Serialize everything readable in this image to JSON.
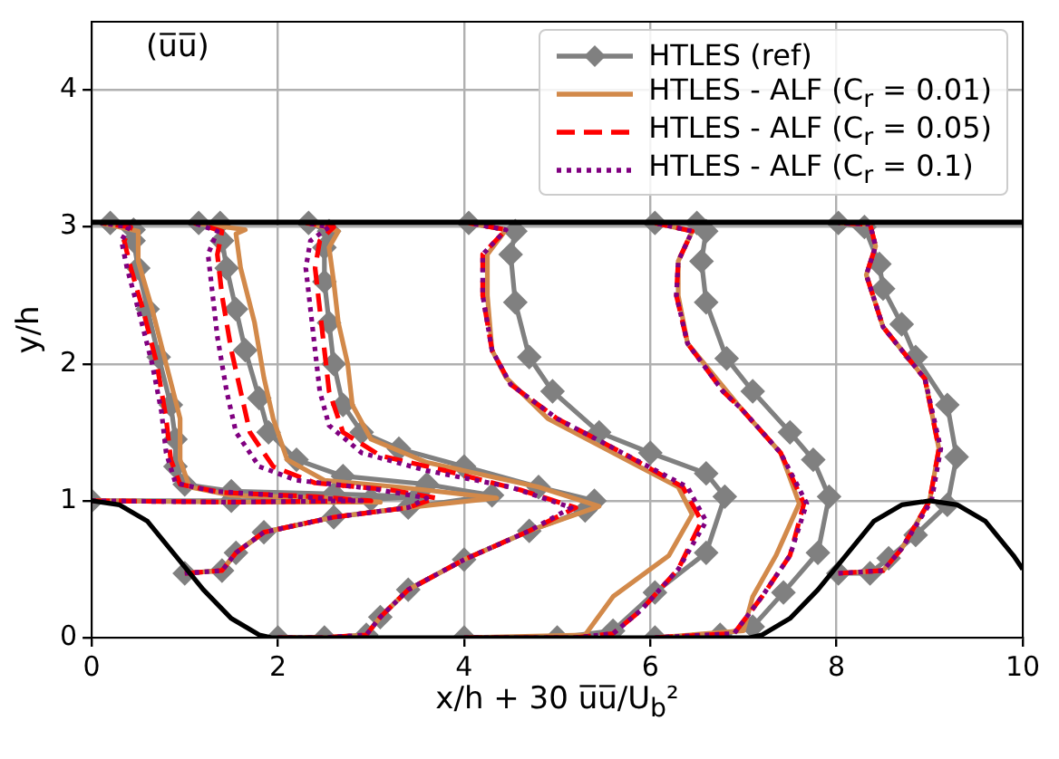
{
  "chart_data": {
    "type": "line",
    "xlabel": "x/h + 30 u̅u̅/U$_{b}$²",
    "ylabel": "y/h",
    "annotations": [
      "(u̅u̅)"
    ],
    "xlim": [
      0,
      10
    ],
    "xticks": [
      0,
      2,
      4,
      6,
      8,
      10
    ],
    "ylim": [
      0,
      4.5
    ],
    "yticks": [
      0,
      1,
      2,
      3,
      4
    ],
    "grid": true,
    "legend": "top right",
    "ref_lines": [
      {
        "axis": "y",
        "value": 3.035,
        "color": "#000000"
      }
    ],
    "series": [
      {
        "name": "HTLES (ref)",
        "color": "#808080",
        "marker": "diamond",
        "line_style": "solid",
        "x": [
          0,
          1.5,
          3.0,
          3.5,
          2.6,
          1.5,
          1.0,
          0.9,
          0.9,
          0.85,
          0.72,
          0.6,
          0.5,
          0.45,
          0.45,
          0.2,
          null,
          1.0,
          1.4,
          1.55,
          1.85,
          2.6,
          3.4,
          4.3,
          3.6,
          2.7,
          2.2,
          1.9,
          1.8,
          1.65,
          1.55,
          1.45,
          1.4,
          1.38,
          1.15,
          null,
          2.0,
          2.5,
          2.95,
          3.1,
          3.4,
          4.0,
          4.7,
          5.3,
          5.4,
          4.8,
          4.0,
          3.3,
          2.9,
          2.7,
          2.6,
          2.55,
          2.5,
          2.5,
          2.55,
          2.33,
          null,
          4.0,
          5.0,
          5.6,
          6.05,
          6.6,
          6.8,
          6.6,
          6.0,
          5.45,
          4.95,
          4.7,
          4.55,
          4.5,
          4.55,
          4.05,
          null,
          6.05,
          6.75,
          7.1,
          7.43,
          7.8,
          7.92,
          7.75,
          7.5,
          7.1,
          6.82,
          6.6,
          6.55,
          6.6,
          6.5,
          6.05,
          null,
          8.02,
          8.36,
          8.56,
          8.85,
          9.19,
          9.29,
          9.19,
          8.85,
          8.7,
          8.5,
          8.46,
          8.3,
          8.02
        ],
        "values": [
          1.0,
          1.0,
          1.01,
          1.03,
          1.05,
          1.07,
          1.12,
          1.25,
          1.45,
          1.7,
          2.05,
          2.4,
          2.7,
          2.9,
          2.98,
          3.03,
          null,
          0.47,
          0.49,
          0.62,
          0.77,
          0.88,
          0.95,
          1.04,
          1.12,
          1.18,
          1.3,
          1.5,
          1.75,
          2.1,
          2.4,
          2.7,
          2.9,
          3.03,
          3.03,
          null,
          0.0,
          0.0,
          0.02,
          0.15,
          0.35,
          0.57,
          0.78,
          0.93,
          1.0,
          1.1,
          1.25,
          1.38,
          1.5,
          1.7,
          2.0,
          2.3,
          2.6,
          2.85,
          2.97,
          3.03,
          null,
          0.0,
          0.0,
          0.05,
          0.33,
          0.62,
          1.03,
          1.2,
          1.35,
          1.5,
          1.8,
          2.05,
          2.45,
          2.8,
          2.97,
          3.03,
          null,
          0.0,
          0.02,
          0.08,
          0.33,
          0.62,
          1.03,
          1.3,
          1.5,
          1.8,
          2.04,
          2.45,
          2.75,
          2.97,
          3.03,
          3.03,
          null,
          0.47,
          0.47,
          0.58,
          0.75,
          0.97,
          1.32,
          1.7,
          2.05,
          2.29,
          2.55,
          2.73,
          3.0,
          3.03
        ]
      },
      {
        "name": "HTLES - ALF (C$_{r}$ = 0.01)",
        "color": "#d2894a",
        "marker": "none",
        "line_style": "solid",
        "x": [
          0,
          1.5,
          3.1,
          2.5,
          1.5,
          1.05,
          0.95,
          0.95,
          0.8,
          0.65,
          0.5,
          0.5,
          0.1,
          null,
          1.0,
          1.4,
          1.55,
          1.85,
          2.6,
          3.4,
          4.35,
          3.3,
          2.5,
          2.1,
          1.95,
          1.85,
          1.75,
          1.6,
          1.55,
          1.65,
          1.1,
          null,
          2.0,
          2.5,
          2.95,
          3.1,
          3.4,
          4.0,
          4.7,
          5.45,
          4.8,
          3.6,
          3.0,
          2.8,
          2.75,
          2.65,
          2.6,
          2.55,
          2.65,
          2.33,
          null,
          4.0,
          5.3,
          5.6,
          6.2,
          6.45,
          6.3,
          5.6,
          4.9,
          4.45,
          4.3,
          4.25,
          4.25,
          4.45,
          4.05,
          null,
          6.05,
          7.0,
          7.1,
          7.35,
          7.6,
          7.4,
          6.98,
          6.4,
          6.3,
          6.3,
          6.45,
          6.05,
          null,
          8.02,
          8.5,
          8.7,
          9.0,
          9.1,
          8.95,
          8.5,
          8.32,
          8.42,
          8.36,
          8.02
        ],
        "values": [
          1.0,
          0.99,
          0.99,
          1.02,
          1.04,
          1.1,
          1.3,
          1.6,
          2.0,
          2.4,
          2.75,
          2.97,
          3.03,
          null,
          0.47,
          0.49,
          0.62,
          0.77,
          0.88,
          0.95,
          1.02,
          1.1,
          1.15,
          1.3,
          1.6,
          1.9,
          2.3,
          2.7,
          2.95,
          2.98,
          3.03,
          null,
          0.0,
          0.0,
          0.02,
          0.15,
          0.35,
          0.57,
          0.78,
          0.96,
          1.1,
          1.28,
          1.45,
          1.7,
          2.0,
          2.3,
          2.6,
          2.85,
          2.97,
          3.03,
          null,
          0.0,
          0.02,
          0.3,
          0.6,
          0.9,
          1.1,
          1.35,
          1.6,
          1.9,
          2.1,
          2.5,
          2.8,
          2.98,
          3.03,
          null,
          0.0,
          0.05,
          0.3,
          0.6,
          0.98,
          1.35,
          1.67,
          2.15,
          2.5,
          2.75,
          2.97,
          3.03,
          null,
          0.47,
          0.49,
          0.65,
          1.0,
          1.38,
          1.89,
          2.27,
          2.65,
          2.86,
          3.02,
          3.03
        ]
      },
      {
        "name": "HTLES - ALF (C$_{r}$ = 0.05)",
        "color": "#ff0000",
        "marker": "none",
        "line_style": "dashed",
        "x": [
          0,
          1.5,
          3.0,
          2.4,
          1.4,
          0.95,
          0.85,
          0.8,
          0.7,
          0.55,
          0.42,
          0.35,
          0.42,
          0.1,
          null,
          1.0,
          1.4,
          1.55,
          1.85,
          2.6,
          3.4,
          3.7,
          3.2,
          2.4,
          1.95,
          1.7,
          1.6,
          1.5,
          1.4,
          1.35,
          1.4,
          1.1,
          null,
          2.0,
          2.5,
          2.95,
          3.1,
          3.4,
          4.0,
          4.7,
          5.2,
          4.6,
          3.8,
          3.1,
          2.7,
          2.55,
          2.5,
          2.45,
          2.4,
          2.45,
          2.6,
          2.3,
          null,
          4.0,
          5.2,
          5.6,
          5.9,
          6.3,
          6.55,
          6.35,
          5.7,
          5.0,
          4.5,
          4.3,
          4.2,
          4.2,
          4.45,
          4.05,
          null,
          6.05,
          6.9,
          7.2,
          7.5,
          7.65,
          7.4,
          6.98,
          6.78,
          6.4,
          6.28,
          6.3,
          6.45,
          6.05,
          null,
          8.02,
          8.5,
          8.7,
          9.0,
          9.1,
          8.95,
          8.5,
          8.32,
          8.42,
          8.36,
          8.02
        ],
        "values": [
          1.0,
          0.99,
          1.0,
          1.03,
          1.06,
          1.12,
          1.3,
          1.6,
          2.0,
          2.4,
          2.7,
          2.9,
          3.0,
          3.03,
          null,
          0.47,
          0.49,
          0.62,
          0.77,
          0.88,
          0.95,
          1.02,
          1.08,
          1.13,
          1.25,
          1.5,
          1.8,
          2.1,
          2.5,
          2.8,
          2.97,
          3.03,
          null,
          0.0,
          0.0,
          0.02,
          0.15,
          0.35,
          0.57,
          0.78,
          0.95,
          1.08,
          1.22,
          1.33,
          1.5,
          1.8,
          2.1,
          2.4,
          2.7,
          2.9,
          3.0,
          3.03,
          null,
          0.0,
          0.0,
          0.03,
          0.2,
          0.5,
          0.85,
          1.1,
          1.35,
          1.6,
          1.85,
          2.1,
          2.5,
          2.8,
          2.98,
          3.03,
          null,
          0.0,
          0.03,
          0.3,
          0.6,
          0.98,
          1.35,
          1.67,
          1.8,
          2.15,
          2.5,
          2.75,
          2.97,
          3.03,
          null,
          0.47,
          0.49,
          0.65,
          1.0,
          1.38,
          1.89,
          2.27,
          2.65,
          2.86,
          3.02,
          3.03
        ]
      },
      {
        "name": "HTLES - ALF (C$_{r}$ = 0.1)",
        "color": "#800080",
        "marker": "none",
        "line_style": "dotted",
        "x": [
          0,
          1.5,
          2.9,
          2.2,
          1.3,
          0.9,
          0.8,
          0.75,
          0.65,
          0.5,
          0.38,
          0.32,
          0.4,
          0.1,
          null,
          1.0,
          1.4,
          1.55,
          1.85,
          2.6,
          3.4,
          3.6,
          3.0,
          2.2,
          1.8,
          1.55,
          1.45,
          1.35,
          1.3,
          1.25,
          1.35,
          1.1,
          null,
          2.0,
          2.5,
          2.95,
          3.1,
          3.4,
          4.0,
          4.7,
          5.15,
          4.5,
          3.6,
          2.9,
          2.55,
          2.45,
          2.4,
          2.35,
          2.3,
          2.35,
          2.55,
          2.3,
          null,
          4.0,
          5.2,
          5.6,
          5.9,
          6.3,
          6.6,
          6.4,
          5.7,
          5.0,
          4.5,
          4.3,
          4.2,
          4.2,
          4.45,
          4.05,
          null,
          6.05,
          6.9,
          7.2,
          7.5,
          7.68,
          7.4,
          6.98,
          6.78,
          6.4,
          6.28,
          6.3,
          6.45,
          6.05,
          null,
          8.02,
          8.5,
          8.7,
          9.02,
          9.12,
          8.95,
          8.5,
          8.32,
          8.42,
          8.36,
          8.02
        ],
        "values": [
          1.0,
          0.99,
          1.0,
          1.03,
          1.07,
          1.13,
          1.35,
          1.65,
          2.0,
          2.4,
          2.7,
          2.9,
          3.0,
          3.03,
          null,
          0.47,
          0.49,
          0.62,
          0.77,
          0.88,
          0.95,
          1.02,
          1.09,
          1.15,
          1.25,
          1.5,
          1.8,
          2.2,
          2.5,
          2.8,
          2.97,
          3.03,
          null,
          0.0,
          0.0,
          0.02,
          0.15,
          0.35,
          0.57,
          0.78,
          0.95,
          1.1,
          1.22,
          1.35,
          1.55,
          1.8,
          2.1,
          2.4,
          2.7,
          2.9,
          3.0,
          3.03,
          null,
          0.0,
          0.0,
          0.03,
          0.2,
          0.5,
          0.85,
          1.1,
          1.35,
          1.6,
          1.85,
          2.1,
          2.5,
          2.8,
          2.98,
          3.03,
          null,
          0.0,
          0.03,
          0.3,
          0.6,
          0.98,
          1.35,
          1.67,
          1.8,
          2.15,
          2.5,
          2.75,
          2.97,
          3.03,
          null,
          0.47,
          0.49,
          0.65,
          1.0,
          1.38,
          1.89,
          2.27,
          2.65,
          2.86,
          3.02,
          3.03
        ]
      },
      {
        "color": "#000000",
        "marker": "none",
        "line_style": "solid",
        "x": [
          0,
          0.3,
          0.6,
          0.9,
          1.2,
          1.5,
          1.8,
          1.93,
          7.07,
          7.2,
          7.5,
          7.8,
          8.1,
          8.4,
          8.7,
          9.0,
          9.3,
          9.6,
          9.9,
          10
        ],
        "values": [
          1.0,
          0.97,
          0.85,
          0.6,
          0.35,
          0.14,
          0.02,
          0,
          0,
          0.02,
          0.14,
          0.35,
          0.6,
          0.85,
          0.97,
          1.0,
          0.97,
          0.85,
          0.6,
          0.5
        ]
      }
    ]
  }
}
